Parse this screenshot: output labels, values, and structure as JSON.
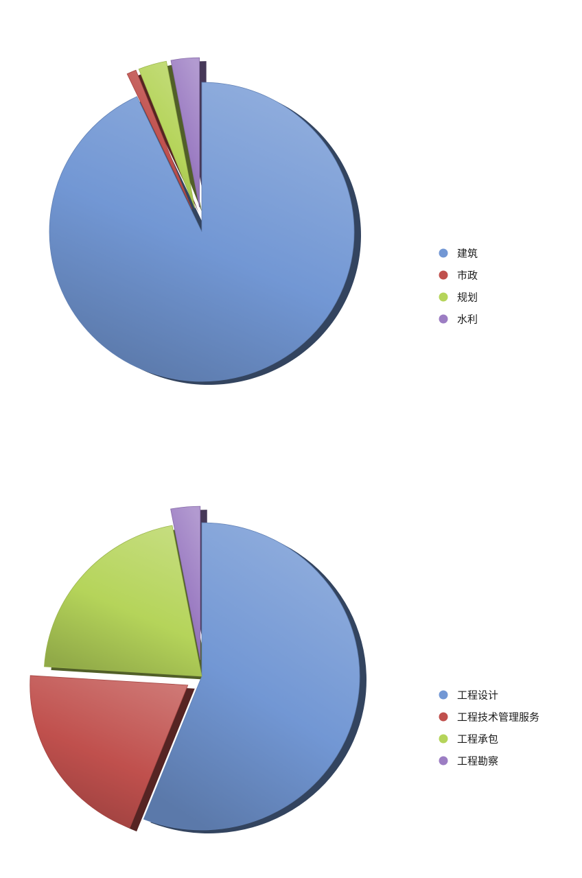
{
  "chart_data": [
    {
      "type": "pie",
      "title": "",
      "categories": [
        "建筑",
        "市政",
        "规划",
        "水利"
      ],
      "values": [
        93,
        1,
        3,
        3
      ],
      "colors": [
        "#7297d4",
        "#c0504d",
        "#b5d45a",
        "#9c7dc3"
      ],
      "exploded": [
        false,
        true,
        true,
        true
      ],
      "legend_position": "right"
    },
    {
      "type": "pie",
      "title": "",
      "categories": [
        "工程设计",
        "工程技术管理服务",
        "工程承包",
        "工程勘察"
      ],
      "values": [
        56,
        20,
        21,
        3
      ],
      "colors": [
        "#7297d4",
        "#c0504d",
        "#b5d45a",
        "#9c7dc3"
      ],
      "exploded": [
        false,
        true,
        false,
        true
      ],
      "legend_position": "right"
    }
  ]
}
